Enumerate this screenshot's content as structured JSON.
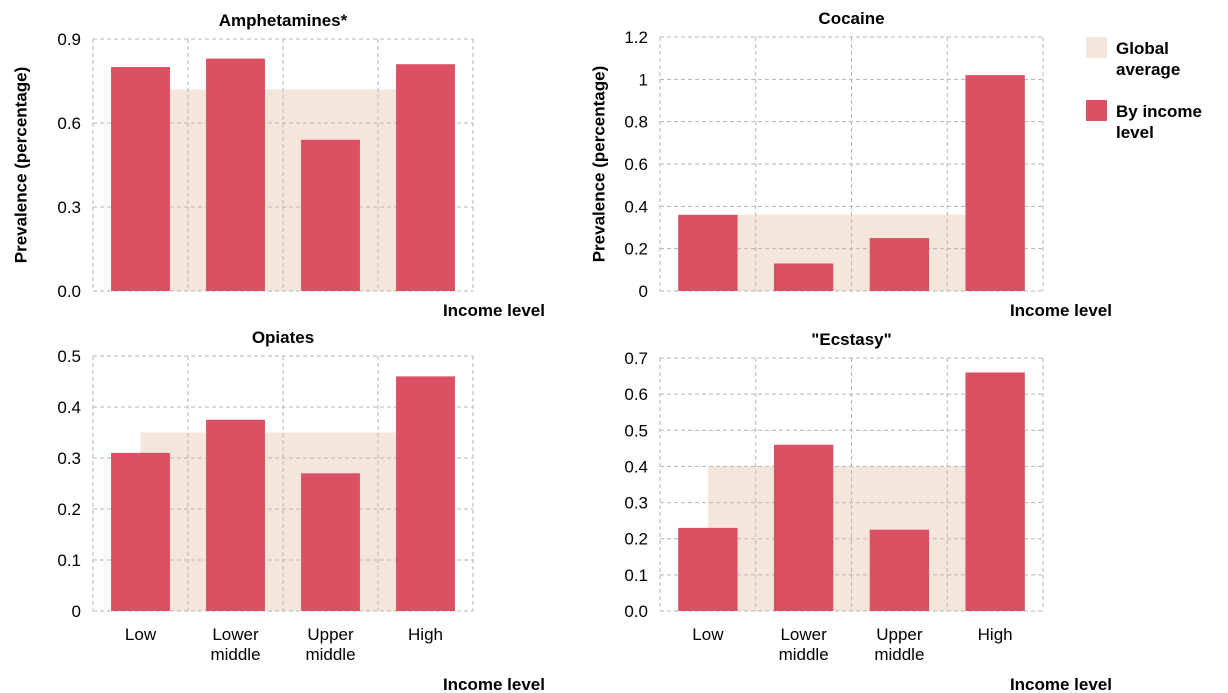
{
  "colors": {
    "global_average": "#f5e6dc",
    "by_income": "#dc5063",
    "grid": "#b5b5b5"
  },
  "legend": {
    "global_average_lines": [
      "Global",
      "average"
    ],
    "by_income_lines": [
      "By income",
      "level"
    ]
  },
  "chart_data": [
    {
      "type": "bar",
      "title": "Amphetamines*",
      "ylabel": "Prevalence (percentage)",
      "xlabel": "Income level",
      "categories": [
        "Low",
        "Lower middle",
        "Upper middle",
        "High"
      ],
      "show_category_labels": false,
      "ylim": [
        0,
        0.9
      ],
      "yticks": [
        0,
        0.3,
        0.6,
        0.9
      ],
      "ytick_labels": [
        "0.0",
        "0.3",
        "0.6",
        "0.9"
      ],
      "global_average": 0.72,
      "series": [
        {
          "name": "By income level",
          "values": [
            0.8,
            0.83,
            0.54,
            0.81
          ]
        }
      ]
    },
    {
      "type": "bar",
      "title": "Cocaine",
      "ylabel": "Prevalence (percentage)",
      "xlabel": "Income level",
      "categories": [
        "Low",
        "Lower middle",
        "Upper middle",
        "High"
      ],
      "show_category_labels": false,
      "ylim": [
        0,
        1.2
      ],
      "yticks": [
        0,
        0.2,
        0.4,
        0.6,
        0.8,
        1.0,
        1.2
      ],
      "ytick_labels": [
        "0",
        "0.2",
        "0.4",
        "0.6",
        "0.8",
        "1",
        "1.2"
      ],
      "global_average": 0.36,
      "series": [
        {
          "name": "By income level",
          "values": [
            0.36,
            0.13,
            0.25,
            1.02
          ]
        }
      ]
    },
    {
      "type": "bar",
      "title": "Opiates",
      "ylabel": "",
      "xlabel": "Income level",
      "categories": [
        "Low",
        "Lower middle",
        "Upper middle",
        "High"
      ],
      "show_category_labels": true,
      "ylim": [
        0,
        0.5
      ],
      "yticks": [
        0,
        0.1,
        0.2,
        0.3,
        0.4,
        0.5
      ],
      "ytick_labels": [
        "0",
        "0.1",
        "0.2",
        "0.3",
        "0.4",
        "0.5"
      ],
      "global_average": 0.35,
      "series": [
        {
          "name": "By income level",
          "values": [
            0.31,
            0.375,
            0.27,
            0.46
          ]
        }
      ]
    },
    {
      "type": "bar",
      "title": "\"Ecstasy\"",
      "ylabel": "",
      "xlabel": "Income level",
      "categories": [
        "Low",
        "Lower middle",
        "Upper middle",
        "High"
      ],
      "show_category_labels": true,
      "ylim": [
        0,
        0.7
      ],
      "yticks": [
        0,
        0.1,
        0.2,
        0.3,
        0.4,
        0.5,
        0.6,
        0.7
      ],
      "ytick_labels": [
        "0.0",
        "0.1",
        "0.2",
        "0.3",
        "0.4",
        "0.5",
        "0.6",
        "0.7"
      ],
      "global_average": 0.4,
      "series": [
        {
          "name": "By income level",
          "values": [
            0.23,
            0.46,
            0.225,
            0.66
          ]
        }
      ]
    }
  ]
}
